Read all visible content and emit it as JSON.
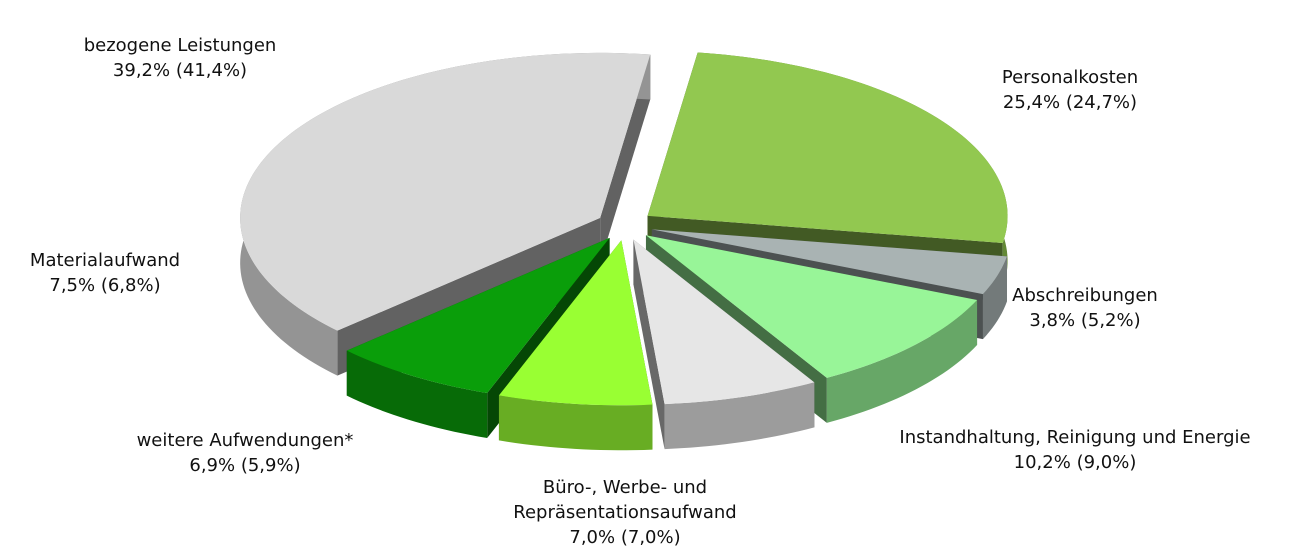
{
  "chart_data": {
    "type": "pie3d",
    "categories": [
      "Personalkosten",
      "Abschreibungen",
      "Instandhaltung, Reinigung und Energie",
      "Büro-, Werbe- und Repräsentationsaufwand",
      "weitere Aufwendungen*",
      "Materialaufwand",
      "bezogene Leistungen"
    ],
    "values": [
      25.4,
      3.8,
      10.2,
      7.0,
      6.9,
      7.5,
      39.2
    ],
    "value_labels": [
      "25,4%",
      "3,8%",
      "10,2%",
      "7,0%",
      "6,9%",
      "7,5%",
      "39,2%"
    ],
    "previous_values": [
      24.7,
      5.2,
      9.0,
      7.0,
      5.9,
      6.8,
      41.4
    ],
    "previous_value_labels": [
      "(24,7%)",
      "(5,2%)",
      "(9,0%)",
      "(7,0%)",
      "(5,9%)",
      "(6,8%)",
      "(41,4%)"
    ],
    "colors": [
      "#92c850",
      "#a9b3b3",
      "#98f598",
      "#e6e6e6",
      "#99ff33",
      "#0a9e0a",
      "#d9d9d9"
    ]
  }
}
